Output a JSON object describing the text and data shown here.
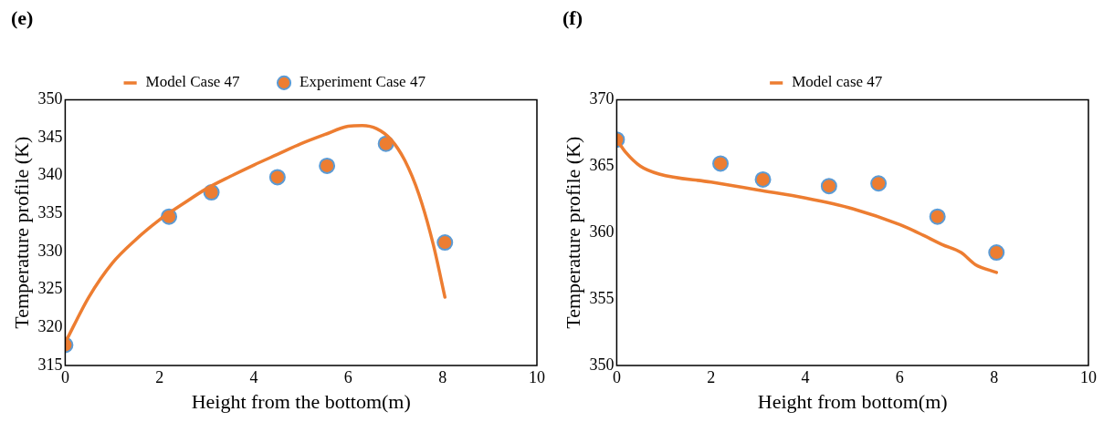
{
  "chart_data": [
    {
      "type": "line",
      "title": "(e)",
      "xlabel": "Height from the bottom(m)",
      "ylabel": "Temperature profile (K)",
      "xlim": [
        0,
        10
      ],
      "xticks": [
        0,
        2,
        4,
        6,
        8,
        10
      ],
      "ylim": [
        315,
        350
      ],
      "yticks": [
        315,
        320,
        325,
        330,
        335,
        340,
        345,
        350
      ],
      "grid": false,
      "legend": "top",
      "series": [
        {
          "name": "Model Case 47",
          "marker": "none",
          "color": "#ed7d31",
          "x": [
            0,
            0.5,
            1,
            1.5,
            2,
            2.5,
            3,
            3.5,
            4,
            4.5,
            5,
            5.5,
            6,
            6.3,
            6.6,
            6.9,
            7.2,
            7.5,
            7.8,
            8.05
          ],
          "values": [
            318,
            324,
            328.5,
            331.6,
            334.2,
            336.3,
            338.3,
            339.9,
            341.4,
            342.8,
            344.2,
            345.4,
            346.5,
            346.6,
            346.2,
            344.8,
            342,
            337.5,
            331,
            324
          ]
        },
        {
          "name": "Experiment Case 47",
          "type": "scatter",
          "marker": "circle",
          "color": "#ed7d31",
          "x": [
            0,
            2.2,
            3.1,
            4.5,
            5.55,
            6.8,
            8.05
          ],
          "values": [
            317.7,
            334.6,
            337.8,
            339.8,
            341.3,
            344.2,
            331.2
          ]
        }
      ]
    },
    {
      "type": "line",
      "title": "(f)",
      "xlabel": "Height from bottom(m)",
      "ylabel": "Temperature profile (K)",
      "xlim": [
        0,
        10
      ],
      "xticks": [
        0,
        2,
        4,
        6,
        8,
        10
      ],
      "ylim": [
        350,
        370
      ],
      "yticks": [
        350,
        355,
        360,
        365,
        370
      ],
      "grid": false,
      "legend": "top",
      "series": [
        {
          "name": "Model case 47",
          "marker": "none",
          "color": "#ed7d31",
          "x": [
            0,
            0.2,
            0.5,
            0.9,
            2,
            3,
            4,
            5,
            6,
            6.5,
            6.9,
            7.3,
            7.6,
            8.05
          ],
          "values": [
            367,
            366,
            365,
            364.4,
            363.8,
            363.2,
            362.6,
            361.8,
            360.6,
            359.8,
            359.1,
            358.5,
            357.6,
            357
          ]
        },
        {
          "type": "scatter",
          "marker": "circle",
          "color": "#ed7d31",
          "x": [
            0,
            2.2,
            3.1,
            4.5,
            5.55,
            6.8,
            8.05
          ],
          "values": [
            367,
            365.2,
            364,
            363.5,
            363.7,
            361.2,
            358.5
          ]
        }
      ]
    }
  ]
}
